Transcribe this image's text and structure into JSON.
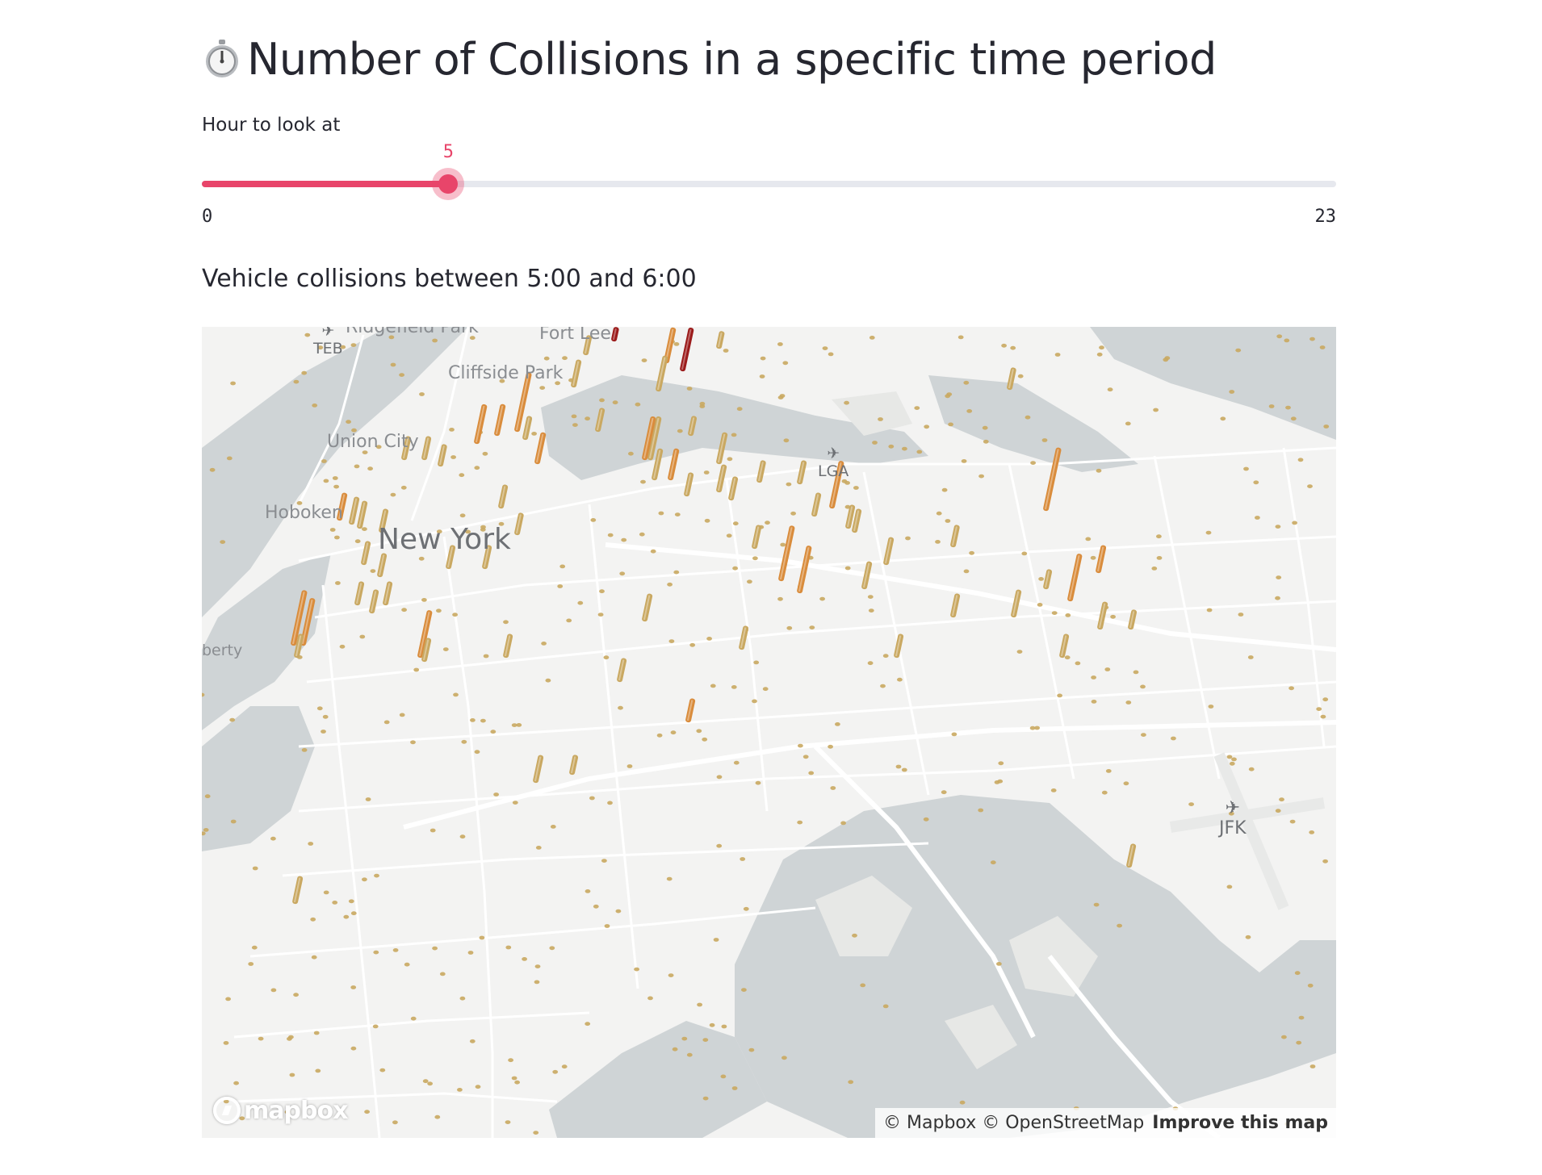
{
  "header": {
    "title": "Number of Collisions in a specific time period",
    "icon": "stopwatch-icon"
  },
  "slider": {
    "label": "Hour to look at",
    "value": 5,
    "min": 0,
    "max": 23,
    "min_label": "0",
    "max_label": "23",
    "value_label": "5",
    "accent": "#e8456a"
  },
  "subheader": "Vehicle collisions between 5:00 and 6:00",
  "map": {
    "place_labels": [
      "Ridgefield Park",
      "Fort Lee",
      "Cliffside Park",
      "Union City",
      "Hoboken",
      "New York",
      "berty"
    ],
    "airports": [
      "TEB",
      "LGA",
      "JFK"
    ],
    "logo_text": "mapbox",
    "attribution": "© Mapbox © OpenStreetMap",
    "improve_link": "Improve this map",
    "column_colors": {
      "low": "#c9a861",
      "mid": "#d98c3c",
      "high": "#9b1b1b"
    }
  }
}
